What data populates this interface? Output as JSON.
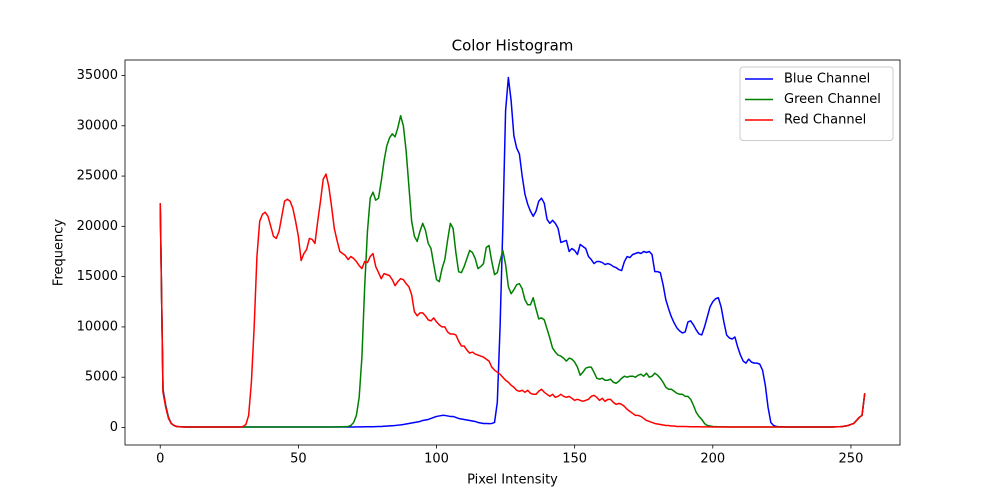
{
  "chart_data": {
    "type": "line",
    "title": "Color Histogram",
    "x_label": "Pixel Intensity",
    "y_label": "Frequency",
    "x": [
      0,
      1,
      2,
      3,
      4,
      5,
      6,
      7,
      8,
      9,
      10,
      11,
      12,
      13,
      14,
      15,
      16,
      17,
      18,
      19,
      20,
      21,
      22,
      23,
      24,
      25,
      26,
      27,
      28,
      29,
      30,
      31,
      32,
      33,
      34,
      35,
      36,
      37,
      38,
      39,
      40,
      41,
      42,
      43,
      44,
      45,
      46,
      47,
      48,
      49,
      50,
      51,
      52,
      53,
      54,
      55,
      56,
      57,
      58,
      59,
      60,
      61,
      62,
      63,
      64,
      65,
      66,
      67,
      68,
      69,
      70,
      71,
      72,
      73,
      74,
      75,
      76,
      77,
      78,
      79,
      80,
      81,
      82,
      83,
      84,
      85,
      86,
      87,
      88,
      89,
      90,
      91,
      92,
      93,
      94,
      95,
      96,
      97,
      98,
      99,
      100,
      101,
      102,
      103,
      104,
      105,
      106,
      107,
      108,
      109,
      110,
      111,
      112,
      113,
      114,
      115,
      116,
      117,
      118,
      119,
      120,
      121,
      122,
      123,
      124,
      125,
      126,
      127,
      128,
      129,
      130,
      131,
      132,
      133,
      134,
      135,
      136,
      137,
      138,
      139,
      140,
      141,
      142,
      143,
      144,
      145,
      146,
      147,
      148,
      149,
      150,
      151,
      152,
      153,
      154,
      155,
      156,
      157,
      158,
      159,
      160,
      161,
      162,
      163,
      164,
      165,
      166,
      167,
      168,
      169,
      170,
      171,
      172,
      173,
      174,
      175,
      176,
      177,
      178,
      179,
      180,
      181,
      182,
      183,
      184,
      185,
      186,
      187,
      188,
      189,
      190,
      191,
      192,
      193,
      194,
      195,
      196,
      197,
      198,
      199,
      200,
      201,
      202,
      203,
      204,
      205,
      206,
      207,
      208,
      209,
      210,
      211,
      212,
      213,
      214,
      215,
      216,
      217,
      218,
      219,
      220,
      221,
      222,
      223,
      224,
      225,
      226,
      227,
      228,
      229,
      230,
      231,
      232,
      233,
      234,
      235,
      236,
      237,
      238,
      239,
      240,
      241,
      242,
      243,
      244,
      245,
      246,
      247,
      248,
      249,
      250,
      251,
      252,
      253,
      254,
      255
    ],
    "series": [
      {
        "name": "Blue Channel",
        "color": "blue",
        "values": [
          22300,
          3800,
          2200,
          1000,
          400,
          200,
          100,
          70,
          60,
          50,
          50,
          50,
          50,
          50,
          50,
          50,
          50,
          50,
          50,
          50,
          50,
          50,
          50,
          50,
          50,
          50,
          50,
          50,
          50,
          50,
          50,
          50,
          50,
          50,
          50,
          50,
          50,
          50,
          50,
          50,
          50,
          50,
          50,
          50,
          50,
          50,
          50,
          50,
          50,
          50,
          50,
          50,
          50,
          50,
          50,
          50,
          50,
          50,
          50,
          50,
          50,
          50,
          50,
          50,
          50,
          50,
          50,
          50,
          50,
          50,
          50,
          60,
          60,
          60,
          70,
          70,
          80,
          80,
          90,
          100,
          100,
          120,
          140,
          160,
          180,
          200,
          230,
          260,
          300,
          350,
          400,
          450,
          500,
          550,
          600,
          700,
          750,
          800,
          900,
          1000,
          1100,
          1150,
          1200,
          1200,
          1150,
          1100,
          1100,
          1000,
          900,
          850,
          800,
          750,
          700,
          650,
          600,
          500,
          450,
          400,
          400,
          380,
          400,
          500,
          2500,
          10000,
          20000,
          31500,
          34800,
          32500,
          29000,
          27800,
          27200,
          25000,
          23200,
          22200,
          21500,
          21000,
          21500,
          22500,
          22800,
          22300,
          20700,
          20300,
          20600,
          20300,
          19800,
          18400,
          18500,
          18600,
          17500,
          17800,
          17600,
          17200,
          18200,
          18000,
          17800,
          17000,
          16700,
          16300,
          16500,
          16500,
          16400,
          16200,
          16300,
          16200,
          16000,
          15900,
          15700,
          15600,
          16500,
          17000,
          16900,
          17200,
          17300,
          17400,
          17300,
          17500,
          17400,
          17500,
          17200,
          15500,
          15500,
          15400,
          14200,
          12700,
          11800,
          11000,
          10400,
          9900,
          9600,
          9400,
          9500,
          10500,
          10600,
          10200,
          9700,
          9300,
          9200,
          10000,
          11000,
          12000,
          12500,
          12800,
          12900,
          12000,
          10500,
          9200,
          8900,
          8800,
          9000,
          8000,
          7200,
          6600,
          6400,
          6800,
          6500,
          6400,
          6400,
          6300,
          5700,
          4200,
          2000,
          500,
          200,
          100,
          80,
          70,
          60,
          50,
          50,
          50,
          50,
          50,
          50,
          50,
          50,
          50,
          50,
          50,
          50,
          50,
          50,
          50,
          50,
          50,
          60,
          70,
          80,
          100,
          150,
          200,
          300,
          400,
          700,
          1000,
          1200,
          3400
        ]
      },
      {
        "name": "Green Channel",
        "color": "green",
        "values": [
          22300,
          3600,
          2100,
          950,
          400,
          200,
          100,
          70,
          60,
          50,
          50,
          50,
          50,
          50,
          50,
          50,
          50,
          50,
          50,
          50,
          50,
          50,
          50,
          50,
          50,
          50,
          50,
          50,
          50,
          50,
          50,
          50,
          50,
          50,
          50,
          50,
          50,
          50,
          50,
          50,
          50,
          50,
          50,
          50,
          50,
          50,
          50,
          50,
          50,
          50,
          50,
          50,
          50,
          50,
          50,
          50,
          50,
          50,
          50,
          50,
          50,
          50,
          50,
          60,
          60,
          70,
          80,
          90,
          100,
          200,
          500,
          1200,
          3000,
          7000,
          14000,
          19500,
          22800,
          23400,
          22600,
          22800,
          24500,
          26500,
          28000,
          28800,
          29200,
          28900,
          29800,
          31000,
          30000,
          27500,
          24000,
          20500,
          19000,
          18500,
          19500,
          20300,
          19600,
          18300,
          17800,
          16200,
          14700,
          14500,
          15800,
          16700,
          18600,
          20300,
          19800,
          17400,
          15500,
          15400,
          16000,
          16800,
          17600,
          17400,
          16800,
          15800,
          16000,
          16300,
          17900,
          18100,
          16500,
          15200,
          15400,
          16600,
          17600,
          16200,
          14000,
          13300,
          13700,
          14200,
          14300,
          13800,
          12700,
          12200,
          12200,
          12900,
          11800,
          10800,
          10900,
          10700,
          9800,
          8900,
          7900,
          7500,
          7200,
          7100,
          6900,
          6600,
          6900,
          6800,
          6500,
          6000,
          5200,
          5500,
          5900,
          6000,
          6000,
          5500,
          4900,
          4800,
          4900,
          4700,
          4700,
          4800,
          4500,
          4400,
          4600,
          4900,
          5100,
          5000,
          5100,
          5100,
          5000,
          5200,
          5300,
          5100,
          5400,
          5000,
          5100,
          5400,
          5200,
          4900,
          4500,
          4000,
          3800,
          3800,
          3600,
          3400,
          3300,
          3300,
          3100,
          3100,
          2800,
          2200,
          1500,
          1100,
          800,
          400,
          200,
          150,
          100,
          90,
          80,
          70,
          60,
          60,
          50,
          50,
          50,
          50,
          50,
          50,
          50,
          50,
          50,
          50,
          50,
          50,
          50,
          50,
          50,
          50,
          50,
          50,
          50,
          50,
          50,
          50,
          50,
          50,
          50,
          50,
          50,
          50,
          50,
          50,
          50,
          50,
          50,
          50,
          50,
          50,
          50,
          50,
          60,
          70,
          80,
          100,
          150,
          200,
          300,
          400,
          700,
          1000,
          1200,
          3400
        ]
      },
      {
        "name": "Red Channel",
        "color": "red",
        "values": [
          22300,
          3500,
          2000,
          900,
          400,
          200,
          100,
          70,
          60,
          50,
          50,
          50,
          50,
          50,
          50,
          50,
          50,
          50,
          50,
          50,
          50,
          50,
          50,
          50,
          50,
          50,
          50,
          50,
          50,
          60,
          100,
          300,
          1200,
          4500,
          10000,
          17000,
          20500,
          21200,
          21400,
          21000,
          20000,
          19000,
          18800,
          19500,
          21000,
          22500,
          22700,
          22500,
          21800,
          20500,
          19000,
          16600,
          17300,
          17700,
          18800,
          18700,
          18300,
          20500,
          22500,
          24700,
          25200,
          24000,
          22000,
          19800,
          18600,
          17500,
          17300,
          17100,
          16700,
          17000,
          16800,
          16500,
          16100,
          15800,
          16500,
          16400,
          17000,
          17300,
          16000,
          15400,
          14800,
          15300,
          15200,
          15100,
          14700,
          14100,
          14500,
          14800,
          14700,
          14300,
          14000,
          13200,
          11500,
          11100,
          11400,
          11400,
          11100,
          10700,
          10600,
          10900,
          10500,
          10200,
          10000,
          10000,
          9500,
          9300,
          9300,
          9200,
          8600,
          8100,
          8100,
          7700,
          7400,
          7500,
          7300,
          7200,
          7100,
          7000,
          6800,
          6600,
          6000,
          5700,
          5500,
          5300,
          5000,
          4700,
          4500,
          4200,
          4000,
          3700,
          3600,
          3700,
          3500,
          3700,
          3400,
          3300,
          3300,
          3600,
          3800,
          3500,
          3300,
          3100,
          3300,
          3000,
          3100,
          3300,
          3100,
          3000,
          3100,
          2900,
          2700,
          2800,
          2700,
          2600,
          2700,
          2800,
          3100,
          3200,
          3000,
          2700,
          2900,
          2600,
          2800,
          2800,
          2500,
          2300,
          2400,
          2300,
          2100,
          1800,
          1600,
          1400,
          1200,
          1200,
          1100,
          900,
          700,
          600,
          500,
          400,
          350,
          300,
          250,
          200,
          200,
          150,
          150,
          100,
          100,
          100,
          100,
          90,
          80,
          80,
          70,
          70,
          60,
          60,
          60,
          60,
          50,
          50,
          50,
          50,
          50,
          50,
          50,
          50,
          50,
          50,
          50,
          50,
          50,
          50,
          50,
          50,
          50,
          50,
          50,
          50,
          50,
          50,
          50,
          50,
          50,
          50,
          50,
          50,
          50,
          50,
          50,
          50,
          50,
          50,
          50,
          50,
          50,
          50,
          50,
          50,
          50,
          50,
          50,
          50,
          60,
          70,
          80,
          100,
          150,
          200,
          300,
          400,
          700,
          1000,
          1200,
          3400
        ]
      }
    ],
    "xlim": [
      -12.75,
      267.75
    ],
    "xticks": [
      0,
      50,
      100,
      150,
      200,
      250
    ],
    "ylim": [
      -1740,
      36540
    ],
    "yticks": [
      0,
      5000,
      10000,
      15000,
      20000,
      25000,
      30000,
      35000
    ],
    "legend": "upper right"
  }
}
